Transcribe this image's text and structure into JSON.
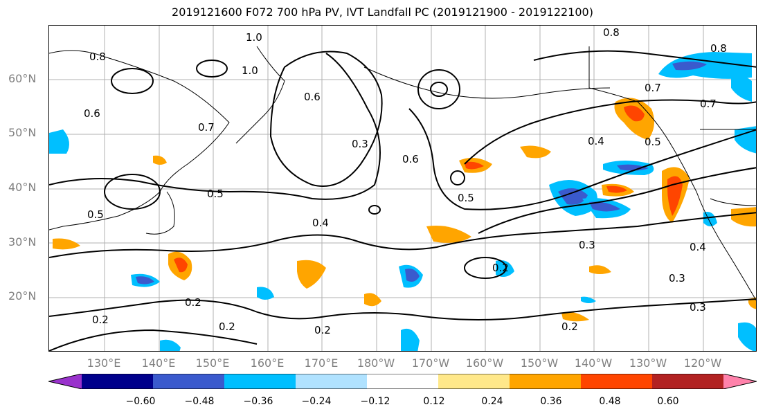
{
  "title": "2019121600 F072 700 hPa PV, IVT Landfall PC (2019121900 - 2019122100)",
  "lat_labels": [
    "60°N",
    "50°N",
    "40°N",
    "30°N",
    "20°N"
  ],
  "lon_labels": [
    "130°E",
    "140°E",
    "150°E",
    "160°E",
    "170°E",
    "180°W",
    "170°W",
    "160°W",
    "150°W",
    "140°W",
    "130°W",
    "120°W"
  ],
  "contour_labels": [
    "1.0",
    "1.0",
    "0.8",
    "0.8",
    "0.8",
    "0.7",
    "0.7",
    "0.7",
    "0.6",
    "0.6",
    "0.6",
    "0.3",
    "0.5",
    "0.5",
    "0.5",
    "0.4",
    "0.4",
    "0.4",
    "0.3",
    "0.3",
    "0.3",
    "0.2",
    "0.2",
    "0.2",
    "0.2",
    "0.2",
    "0.2",
    "0.5"
  ],
  "colorbar": {
    "ticks": [
      "−0.60",
      "−0.48",
      "−0.36",
      "−0.24",
      "−0.12",
      "0.12",
      "0.24",
      "0.36",
      "0.48",
      "0.60"
    ],
    "colors": [
      "#9932cc",
      "#00008b",
      "#3a5acd",
      "#00bfff",
      "#b0e2ff",
      "#ffffff",
      "#ffe88a",
      "#ffa500",
      "#ff4500",
      "#b22222",
      "#ff82ab"
    ]
  },
  "colors": {
    "coast": "#000000",
    "contour": "#000000",
    "grid": "#b0b0b0",
    "tick_label": "#808080"
  }
}
